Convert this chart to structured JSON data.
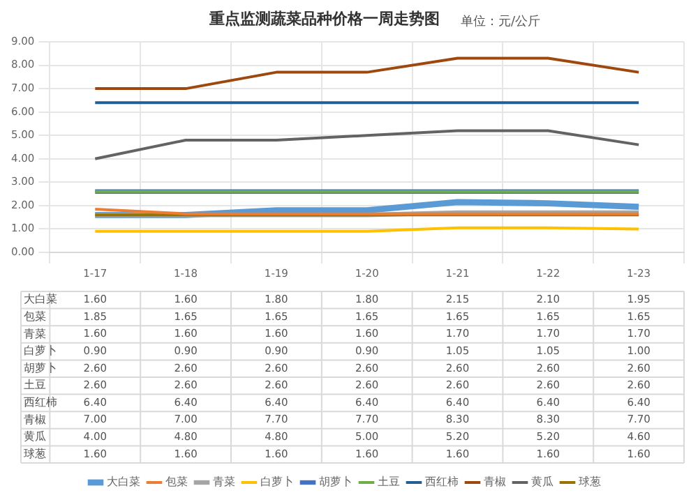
{
  "chart_data": {
    "type": "line",
    "title": "重点监测蔬菜品种价格一周走势图",
    "subtitle": "单位：元/公斤",
    "categories": [
      "1-17",
      "1-18",
      "1-19",
      "1-20",
      "1-21",
      "1-22",
      "1-23"
    ],
    "series": [
      {
        "name": "大白菜",
        "color": "#5b9bd5",
        "values": [
          1.6,
          1.6,
          1.8,
          1.8,
          2.15,
          2.1,
          1.95
        ],
        "value_labels": [
          "1.60",
          "1.60",
          "1.80",
          "1.80",
          "2.15",
          "2.10",
          "1.95"
        ]
      },
      {
        "name": "包菜",
        "color": "#ed7d31",
        "values": [
          1.85,
          1.65,
          1.65,
          1.65,
          1.65,
          1.65,
          1.65
        ],
        "value_labels": [
          "1.85",
          "1.65",
          "1.65",
          "1.65",
          "1.65",
          "1.65",
          "1.65"
        ]
      },
      {
        "name": "青菜",
        "color": "#a5a5a5",
        "values": [
          1.6,
          1.6,
          1.6,
          1.6,
          1.7,
          1.7,
          1.7
        ],
        "value_labels": [
          "1.60",
          "1.60",
          "1.60",
          "1.60",
          "1.70",
          "1.70",
          "1.70"
        ]
      },
      {
        "name": "白萝卜",
        "color": "#ffc000",
        "values": [
          0.9,
          0.9,
          0.9,
          0.9,
          1.05,
          1.05,
          1.0
        ],
        "value_labels": [
          "0.90",
          "0.90",
          "0.90",
          "0.90",
          "1.05",
          "1.05",
          "1.00"
        ]
      },
      {
        "name": "胡萝卜",
        "color": "#4472c4",
        "values": [
          2.6,
          2.6,
          2.6,
          2.6,
          2.6,
          2.6,
          2.6
        ],
        "value_labels": [
          "2.60",
          "2.60",
          "2.60",
          "2.60",
          "2.60",
          "2.60",
          "2.60"
        ]
      },
      {
        "name": "土豆",
        "color": "#70ad47",
        "values": [
          2.6,
          2.6,
          2.6,
          2.6,
          2.6,
          2.6,
          2.6
        ],
        "value_labels": [
          "2.60",
          "2.60",
          "2.60",
          "2.60",
          "2.60",
          "2.60",
          "2.60"
        ]
      },
      {
        "name": "西红柿",
        "color": "#255e91",
        "values": [
          6.4,
          6.4,
          6.4,
          6.4,
          6.4,
          6.4,
          6.4
        ],
        "value_labels": [
          "6.40",
          "6.40",
          "6.40",
          "6.40",
          "6.40",
          "6.40",
          "6.40"
        ]
      },
      {
        "name": "青椒",
        "color": "#9e480e",
        "values": [
          7.0,
          7.0,
          7.7,
          7.7,
          8.3,
          8.3,
          7.7
        ],
        "value_labels": [
          "7.00",
          "7.00",
          "7.70",
          "7.70",
          "8.30",
          "8.30",
          "7.70"
        ]
      },
      {
        "name": "黄瓜",
        "color": "#636363",
        "values": [
          4.0,
          4.8,
          4.8,
          5.0,
          5.2,
          5.2,
          4.6
        ],
        "value_labels": [
          "4.00",
          "4.80",
          "4.80",
          "5.00",
          "5.20",
          "5.20",
          "4.60"
        ]
      },
      {
        "name": "球葱",
        "color": "#997300",
        "values": [
          1.6,
          1.6,
          1.6,
          1.6,
          1.6,
          1.6,
          1.6
        ],
        "value_labels": [
          "1.60",
          "1.60",
          "1.60",
          "1.60",
          "1.60",
          "1.60",
          "1.60"
        ]
      }
    ],
    "ylim": [
      0,
      9
    ],
    "yticks": [
      {
        "value": 0,
        "label": "0.00"
      },
      {
        "value": 1,
        "label": "1.00"
      },
      {
        "value": 2,
        "label": "2.00"
      },
      {
        "value": 3,
        "label": "3.00"
      },
      {
        "value": 4,
        "label": "4.00"
      },
      {
        "value": 5,
        "label": "5.00"
      },
      {
        "value": 6,
        "label": "6.00"
      },
      {
        "value": 7,
        "label": "7.00"
      },
      {
        "value": 8,
        "label": "8.00"
      },
      {
        "value": 9,
        "label": "9.00"
      }
    ],
    "grid": true,
    "legend": "bottom",
    "marker": "none",
    "line_style": "solid"
  }
}
